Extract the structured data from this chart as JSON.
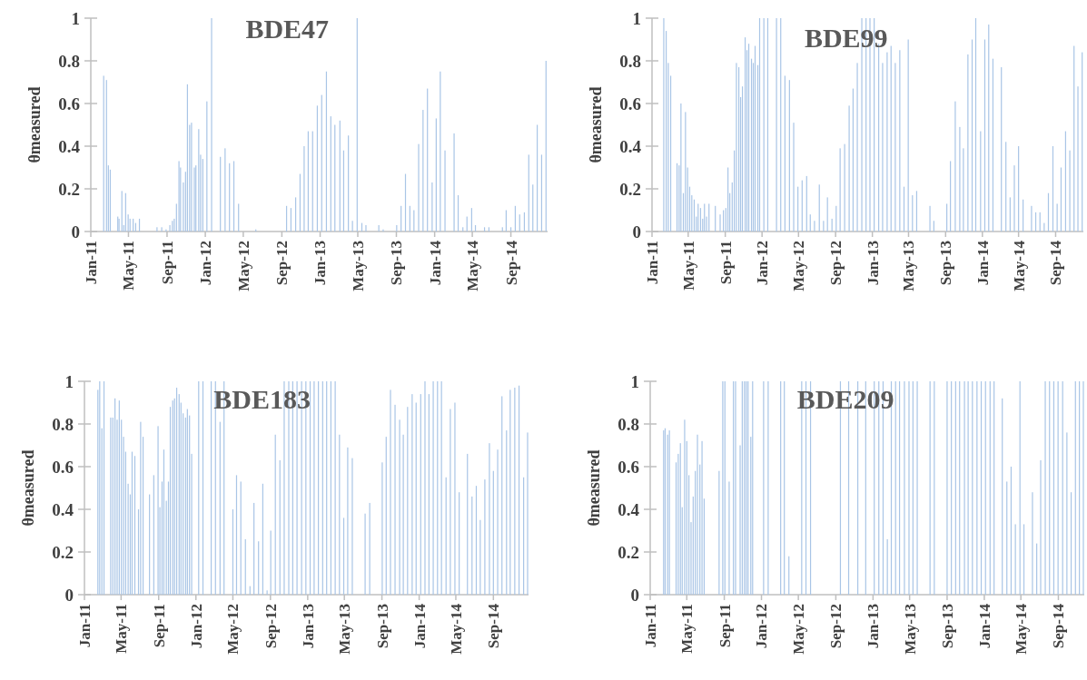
{
  "chart_data": [
    {
      "type": "bar",
      "title": "BDE47",
      "ylabel": "θmeasured",
      "color": "#a9c5e6",
      "xlim": [
        "2011-01-01",
        "2014-12-27"
      ],
      "ylim": [
        0,
        1
      ],
      "yticks": [
        0,
        0.2,
        0.4,
        0.6,
        0.8,
        1
      ],
      "xticks": [
        {
          "value": "2011-01-01",
          "label": "Jan-11"
        },
        {
          "value": "2011-05-01",
          "label": "May-11"
        },
        {
          "value": "2011-09-01",
          "label": "Sep-11"
        },
        {
          "value": "2012-01-01",
          "label": "Jan-12"
        },
        {
          "value": "2012-05-01",
          "label": "May-12"
        },
        {
          "value": "2012-09-01",
          "label": "Sep-12"
        },
        {
          "value": "2013-01-01",
          "label": "Jan-13"
        },
        {
          "value": "2013-05-01",
          "label": "May-13"
        },
        {
          "value": "2013-09-01",
          "label": "Sep-13"
        },
        {
          "value": "2014-01-01",
          "label": "Jan-14"
        },
        {
          "value": "2014-05-01",
          "label": "May-14"
        },
        {
          "value": "2014-09-01",
          "label": "Sep-14"
        }
      ],
      "x": [
        "2011-02-11",
        "2011-02-20",
        "2011-02-26",
        "2011-03-04",
        "2011-03-28",
        "2011-04-01",
        "2011-04-10",
        "2011-04-16",
        "2011-04-22",
        "2011-04-30",
        "2011-05-06",
        "2011-05-16",
        "2011-05-24",
        "2011-06-05",
        "2011-07-31",
        "2011-08-15",
        "2011-08-29",
        "2011-09-10",
        "2011-09-18",
        "2011-09-24",
        "2011-10-01",
        "2011-10-09",
        "2011-10-14",
        "2011-10-23",
        "2011-10-30",
        "2011-11-05",
        "2011-11-12",
        "2011-11-18",
        "2011-11-27",
        "2011-12-02",
        "2011-12-11",
        "2011-12-17",
        "2011-12-24",
        "2012-01-06",
        "2012-01-21",
        "2012-02-18",
        "2012-03-04",
        "2012-03-18",
        "2012-04-01",
        "2012-04-16",
        "2012-06-10",
        "2012-09-16",
        "2012-09-30",
        "2012-10-15",
        "2012-10-29",
        "2012-11-11",
        "2012-11-24",
        "2012-12-08",
        "2012-12-23",
        "2013-01-06",
        "2013-01-21",
        "2013-02-04",
        "2013-02-17",
        "2013-03-05",
        "2013-03-17",
        "2013-04-01",
        "2013-04-14",
        "2013-04-29",
        "2013-05-14",
        "2013-05-27",
        "2013-07-07",
        "2013-07-21",
        "2013-09-02",
        "2013-09-16",
        "2013-09-30",
        "2013-10-14",
        "2013-10-27",
        "2013-11-11",
        "2013-11-25",
        "2013-12-09",
        "2013-12-24",
        "2014-01-06",
        "2014-01-19",
        "2014-02-03",
        "2014-03-04",
        "2014-03-17",
        "2014-04-01",
        "2014-04-14",
        "2014-04-29",
        "2014-05-11",
        "2014-06-09",
        "2014-06-23",
        "2014-08-05",
        "2014-08-17",
        "2014-09-01",
        "2014-09-15",
        "2014-09-29",
        "2014-10-14",
        "2014-10-28",
        "2014-11-10",
        "2014-11-24",
        "2014-12-08",
        "2014-12-22"
      ],
      "values": [
        0.73,
        0.71,
        0.31,
        0.29,
        0.07,
        0.06,
        0.19,
        0.03,
        0.18,
        0.08,
        0.06,
        0.06,
        0.04,
        0.06,
        0.02,
        0.02,
        0.01,
        0.03,
        0.05,
        0.06,
        0.13,
        0.33,
        0.3,
        0.23,
        0.28,
        0.69,
        0.5,
        0.51,
        0.3,
        0.31,
        0.48,
        0.36,
        0.34,
        0.61,
        1,
        0.35,
        0.39,
        0.32,
        0.33,
        0.13,
        0.01,
        0.12,
        0.11,
        0.16,
        0.27,
        0.4,
        0.47,
        0.47,
        0.59,
        0.64,
        0.75,
        0.54,
        0.5,
        0.52,
        0.38,
        0.45,
        0.05,
        1,
        0.04,
        0.03,
        0.03,
        0.01,
        0.03,
        0.12,
        0.27,
        0.12,
        0.1,
        0.41,
        0.57,
        0.67,
        0.23,
        0.53,
        0.75,
        0.38,
        0.46,
        0.17,
        0.02,
        0.07,
        0.11,
        0.03,
        0.02,
        0.02,
        0.02,
        0.1,
        0.02,
        0.12,
        0.08,
        0.09,
        0.36,
        0.22,
        0.5,
        0.36,
        0.8
      ]
    },
    {
      "type": "bar",
      "title": "BDE99",
      "ylabel": "θmeasured",
      "color": "#a9c5e6",
      "xlim": [
        "2011-01-01",
        "2014-12-02"
      ],
      "ylim": [
        0,
        1
      ],
      "yticks": [
        0,
        0.2,
        0.4,
        0.6,
        0.8,
        1
      ],
      "xticks": [
        {
          "value": "2011-01-01",
          "label": "Jan-11"
        },
        {
          "value": "2011-05-01",
          "label": "May-11"
        },
        {
          "value": "2011-09-01",
          "label": "Sep-11"
        },
        {
          "value": "2012-01-01",
          "label": "Jan-12"
        },
        {
          "value": "2012-05-01",
          "label": "May-12"
        },
        {
          "value": "2012-09-01",
          "label": "Sep-12"
        },
        {
          "value": "2013-01-01",
          "label": "Jan-13"
        },
        {
          "value": "2013-05-01",
          "label": "May-13"
        },
        {
          "value": "2013-09-01",
          "label": "Sep-13"
        },
        {
          "value": "2014-01-01",
          "label": "Jan-14"
        },
        {
          "value": "2014-05-01",
          "label": "May-14"
        },
        {
          "value": "2014-09-01",
          "label": "Sep-14"
        }
      ],
      "x": [
        "2011-02-09",
        "2011-02-17",
        "2011-02-24",
        "2011-03-04",
        "2011-03-25",
        "2011-04-01",
        "2011-04-07",
        "2011-04-15",
        "2011-04-22",
        "2011-04-29",
        "2011-05-06",
        "2011-05-13",
        "2011-05-21",
        "2011-05-28",
        "2011-06-03",
        "2011-06-11",
        "2011-06-18",
        "2011-06-24",
        "2011-07-01",
        "2011-07-09",
        "2011-07-30",
        "2011-08-15",
        "2011-08-26",
        "2011-09-03",
        "2011-09-10",
        "2011-09-16",
        "2011-09-24",
        "2011-10-01",
        "2011-10-08",
        "2011-10-16",
        "2011-10-22",
        "2011-10-28",
        "2011-11-06",
        "2011-11-12",
        "2011-11-18",
        "2011-11-27",
        "2011-12-03",
        "2011-12-09",
        "2011-12-18",
        "2011-12-24",
        "2012-01-07",
        "2012-01-20",
        "2012-02-18",
        "2012-03-03",
        "2012-03-17",
        "2012-04-01",
        "2012-04-15",
        "2012-04-29",
        "2012-05-13",
        "2012-05-28",
        "2012-06-09",
        "2012-06-23",
        "2012-07-09",
        "2012-07-23",
        "2012-08-05",
        "2012-08-20",
        "2012-09-03",
        "2012-09-16",
        "2012-10-01",
        "2012-10-16",
        "2012-10-29",
        "2012-11-12",
        "2012-11-27",
        "2012-12-11",
        "2012-12-24",
        "2013-01-07",
        "2013-01-22",
        "2013-02-04",
        "2013-02-19",
        "2013-03-04",
        "2013-03-18",
        "2013-04-02",
        "2013-04-16",
        "2013-04-30",
        "2013-05-14",
        "2013-05-28",
        "2013-07-11",
        "2013-07-24",
        "2013-09-05",
        "2013-09-17",
        "2013-10-03",
        "2013-10-18",
        "2013-10-30",
        "2013-11-14",
        "2013-11-28",
        "2013-12-10",
        "2013-12-26",
        "2014-01-09",
        "2014-01-22",
        "2014-02-05",
        "2014-03-05",
        "2014-03-20",
        "2014-04-03",
        "2014-04-17",
        "2014-05-01",
        "2014-05-16",
        "2014-06-13",
        "2014-06-27",
        "2014-07-11",
        "2014-07-25",
        "2014-08-08",
        "2014-08-23",
        "2014-09-06",
        "2014-09-19",
        "2014-10-04",
        "2014-10-18",
        "2014-11-01",
        "2014-11-14",
        "2014-11-28"
      ],
      "values": [
        1,
        0.94,
        0.79,
        0.73,
        0.32,
        0.31,
        0.6,
        0.18,
        0.56,
        0.3,
        0.21,
        0.17,
        0.15,
        0.07,
        0.13,
        0.11,
        0.06,
        0.13,
        0.07,
        0.13,
        0.12,
        0.08,
        0.1,
        0.11,
        0.3,
        0.18,
        0.23,
        0.38,
        0.79,
        0.77,
        0.63,
        0.68,
        0.91,
        0.85,
        0.88,
        0.81,
        0.79,
        0.87,
        0.78,
        1,
        1,
        1,
        1,
        1,
        0.73,
        0.71,
        0.51,
        0.21,
        0.24,
        0.26,
        0.08,
        0.05,
        0.22,
        0.05,
        0.16,
        0.06,
        0.12,
        0.39,
        0.41,
        0.59,
        0.67,
        0.79,
        1,
        1,
        1,
        1,
        0.88,
        0.79,
        0.84,
        0.87,
        0.79,
        0.85,
        0.21,
        0.9,
        0.17,
        0.19,
        0.12,
        0.05,
        0.13,
        0.33,
        0.61,
        0.49,
        0.39,
        0.83,
        0.9,
        1,
        0.47,
        0.9,
        0.97,
        0.81,
        0.77,
        0.42,
        0.16,
        0.31,
        0.4,
        0.15,
        0.12,
        0.09,
        0.09,
        0.04,
        0.18,
        0.4,
        0.13,
        0.3,
        0.47,
        0.38,
        0.87,
        0.68,
        0.84
      ]
    },
    {
      "type": "bar",
      "title": "BDE183",
      "ylabel": "θmeasured",
      "color": "#a9c5e6",
      "xlim": [
        "2011-01-01",
        "2014-12-25"
      ],
      "ylim": [
        0,
        1
      ],
      "yticks": [
        0,
        0.2,
        0.4,
        0.6,
        0.8,
        1
      ],
      "xticks": [
        {
          "value": "2011-01-01",
          "label": "Jan-11"
        },
        {
          "value": "2011-05-01",
          "label": "May-11"
        },
        {
          "value": "2011-09-01",
          "label": "Sep-11"
        },
        {
          "value": "2012-01-01",
          "label": "Jan-12"
        },
        {
          "value": "2012-05-01",
          "label": "May-12"
        },
        {
          "value": "2012-09-01",
          "label": "Sep-12"
        },
        {
          "value": "2013-01-01",
          "label": "Jan-13"
        },
        {
          "value": "2013-05-01",
          "label": "May-13"
        },
        {
          "value": "2013-09-01",
          "label": "Sep-13"
        },
        {
          "value": "2014-01-01",
          "label": "Jan-14"
        },
        {
          "value": "2014-05-01",
          "label": "May-14"
        },
        {
          "value": "2014-09-01",
          "label": "Sep-14"
        }
      ],
      "x": [
        "2011-02-14",
        "2011-02-20",
        "2011-02-27",
        "2011-03-06",
        "2011-03-28",
        "2011-04-04",
        "2011-04-11",
        "2011-04-18",
        "2011-04-25",
        "2011-05-02",
        "2011-05-09",
        "2011-05-16",
        "2011-05-24",
        "2011-05-31",
        "2011-06-06",
        "2011-06-15",
        "2011-06-27",
        "2011-07-04",
        "2011-07-12",
        "2011-08-02",
        "2011-08-16",
        "2011-08-30",
        "2011-09-05",
        "2011-09-12",
        "2011-09-18",
        "2011-09-26",
        "2011-10-03",
        "2011-10-09",
        "2011-10-17",
        "2011-10-23",
        "2011-10-30",
        "2011-11-07",
        "2011-11-13",
        "2011-11-20",
        "2011-11-28",
        "2011-12-04",
        "2011-12-11",
        "2011-12-18",
        "2012-01-10",
        "2012-01-24",
        "2012-02-20",
        "2012-03-05",
        "2012-03-20",
        "2012-04-02",
        "2012-05-01",
        "2012-05-13",
        "2012-05-27",
        "2012-06-11",
        "2012-06-26",
        "2012-07-09",
        "2012-07-24",
        "2012-08-07",
        "2012-08-21",
        "2012-09-02",
        "2012-09-17",
        "2012-10-02",
        "2012-10-16",
        "2012-10-31",
        "2012-11-13",
        "2012-11-27",
        "2012-12-12",
        "2012-12-26",
        "2013-01-09",
        "2013-01-22",
        "2013-02-05",
        "2013-02-19",
        "2013-03-04",
        "2013-03-18",
        "2013-04-01",
        "2013-04-15",
        "2013-04-29",
        "2013-05-12",
        "2013-05-27",
        "2013-07-08",
        "2013-07-23",
        "2013-09-02",
        "2013-09-15",
        "2013-09-29",
        "2013-10-14",
        "2013-10-29",
        "2013-11-10",
        "2013-11-24",
        "2013-12-09",
        "2013-12-22",
        "2014-01-06",
        "2014-01-20",
        "2014-02-02",
        "2014-02-16",
        "2014-03-02",
        "2014-03-15",
        "2014-03-30",
        "2014-04-13",
        "2014-04-28",
        "2014-05-12",
        "2014-06-08",
        "2014-06-23",
        "2014-07-07",
        "2014-07-20",
        "2014-08-04",
        "2014-08-19",
        "2014-09-01",
        "2014-09-15",
        "2014-09-29",
        "2014-10-14",
        "2014-10-26",
        "2014-11-10",
        "2014-11-24",
        "2014-12-09",
        "2014-12-22"
      ],
      "values": [
        0.96,
        1,
        0.78,
        1,
        0.83,
        0.83,
        0.92,
        0.82,
        0.91,
        0.82,
        0.74,
        0.67,
        0.52,
        0.47,
        0.67,
        0.65,
        0.4,
        0.81,
        0.74,
        0.47,
        0.56,
        0.79,
        0.41,
        0.53,
        0.68,
        0.44,
        0.53,
        0.88,
        0.91,
        0.92,
        0.97,
        0.94,
        0.9,
        0.85,
        0.83,
        0.87,
        0.84,
        0.66,
        1,
        1,
        1,
        1,
        0.81,
        1,
        0.4,
        0.56,
        0.53,
        0.26,
        0.04,
        0.43,
        0.25,
        0.52,
        0.02,
        0.3,
        0.75,
        0.63,
        1,
        1,
        1,
        1,
        1,
        1,
        1,
        1,
        1,
        1,
        1,
        1,
        1,
        0.75,
        0.36,
        0.69,
        0.64,
        0.38,
        0.43,
        0.62,
        0.74,
        0.96,
        0.89,
        0.82,
        0.75,
        0.88,
        0.94,
        0.9,
        0.94,
        1,
        0.94,
        1,
        1,
        1,
        0.55,
        0.87,
        0.9,
        0.48,
        0.66,
        0.46,
        0.51,
        0.35,
        0.54,
        0.71,
        0.58,
        0.68,
        0.93,
        0.77,
        0.96,
        0.97,
        0.98,
        0.55,
        0.76
      ]
    },
    {
      "type": "bar",
      "title": "BDE209",
      "ylabel": "θmeasured",
      "color": "#a9c5e6",
      "xlim": [
        "2011-01-01",
        "2014-11-25"
      ],
      "ylim": [
        0,
        1
      ],
      "yticks": [
        0,
        0.2,
        0.4,
        0.6,
        0.8,
        1
      ],
      "xticks": [
        {
          "value": "2011-01-01",
          "label": "Jan-11"
        },
        {
          "value": "2011-05-01",
          "label": "May-11"
        },
        {
          "value": "2011-09-01",
          "label": "Sep-11"
        },
        {
          "value": "2012-01-01",
          "label": "Jan-12"
        },
        {
          "value": "2012-05-01",
          "label": "May-12"
        },
        {
          "value": "2012-09-01",
          "label": "Sep-12"
        },
        {
          "value": "2013-01-01",
          "label": "Jan-13"
        },
        {
          "value": "2013-05-01",
          "label": "May-13"
        },
        {
          "value": "2013-09-01",
          "label": "Sep-13"
        },
        {
          "value": "2014-01-01",
          "label": "Jan-14"
        },
        {
          "value": "2014-05-01",
          "label": "May-14"
        },
        {
          "value": "2014-09-01",
          "label": "Sep-14"
        }
      ],
      "x": [
        "2011-02-14",
        "2011-02-19",
        "2011-02-27",
        "2011-03-05",
        "2011-03-27",
        "2011-04-03",
        "2011-04-10",
        "2011-04-16",
        "2011-04-24",
        "2011-05-01",
        "2011-05-08",
        "2011-05-15",
        "2011-05-22",
        "2011-05-29",
        "2011-06-05",
        "2011-06-13",
        "2011-06-20",
        "2011-06-27",
        "2011-08-15",
        "2011-08-27",
        "2011-09-03",
        "2011-09-17",
        "2011-10-01",
        "2011-10-08",
        "2011-10-23",
        "2011-10-30",
        "2011-11-06",
        "2011-11-12",
        "2011-11-18",
        "2011-11-27",
        "2011-12-03",
        "2012-01-08",
        "2012-01-23",
        "2012-03-04",
        "2012-03-16",
        "2012-03-31",
        "2012-05-12",
        "2012-05-26",
        "2012-06-10",
        "2012-09-16",
        "2012-10-13",
        "2012-11-12",
        "2012-12-08",
        "2013-01-05",
        "2013-01-20",
        "2013-02-03",
        "2013-02-17",
        "2013-03-02",
        "2013-03-16",
        "2013-03-29",
        "2013-04-14",
        "2013-04-29",
        "2013-05-12",
        "2013-05-26",
        "2013-07-07",
        "2013-07-21",
        "2013-09-01",
        "2013-09-15",
        "2013-09-29",
        "2013-10-12",
        "2013-10-28",
        "2013-11-09",
        "2013-11-23",
        "2013-12-08",
        "2013-12-22",
        "2014-01-05",
        "2014-01-20",
        "2014-02-02",
        "2014-03-01",
        "2014-03-16",
        "2014-03-30",
        "2014-04-13",
        "2014-04-28",
        "2014-05-11",
        "2014-06-08",
        "2014-06-22",
        "2014-07-05",
        "2014-07-20",
        "2014-08-03",
        "2014-08-17",
        "2014-08-31",
        "2014-09-15",
        "2014-09-29",
        "2014-10-13",
        "2014-10-27",
        "2014-11-09",
        "2014-11-22"
      ],
      "values": [
        0.77,
        0.78,
        0.75,
        0.77,
        0.62,
        0.66,
        0.71,
        0.41,
        0.82,
        0.72,
        0.56,
        0.34,
        0.46,
        0.58,
        0.75,
        0.61,
        0.72,
        0.45,
        0.58,
        1,
        1,
        0.53,
        1,
        1,
        0.7,
        1,
        1,
        1,
        1,
        0.74,
        1,
        1,
        1,
        1,
        1,
        0.18,
        1,
        1,
        1,
        1,
        1,
        1,
        1,
        1,
        1,
        1,
        0.26,
        1,
        1,
        1,
        1,
        1,
        1,
        1,
        1,
        1,
        1,
        1,
        1,
        1,
        1,
        1,
        1,
        1,
        1,
        1,
        1,
        1,
        0.92,
        0.53,
        0.6,
        0.33,
        1,
        0.33,
        0.48,
        0.24,
        0.63,
        1,
        1,
        1,
        1,
        1,
        0.76,
        0.48,
        1,
        1,
        1
      ]
    }
  ]
}
